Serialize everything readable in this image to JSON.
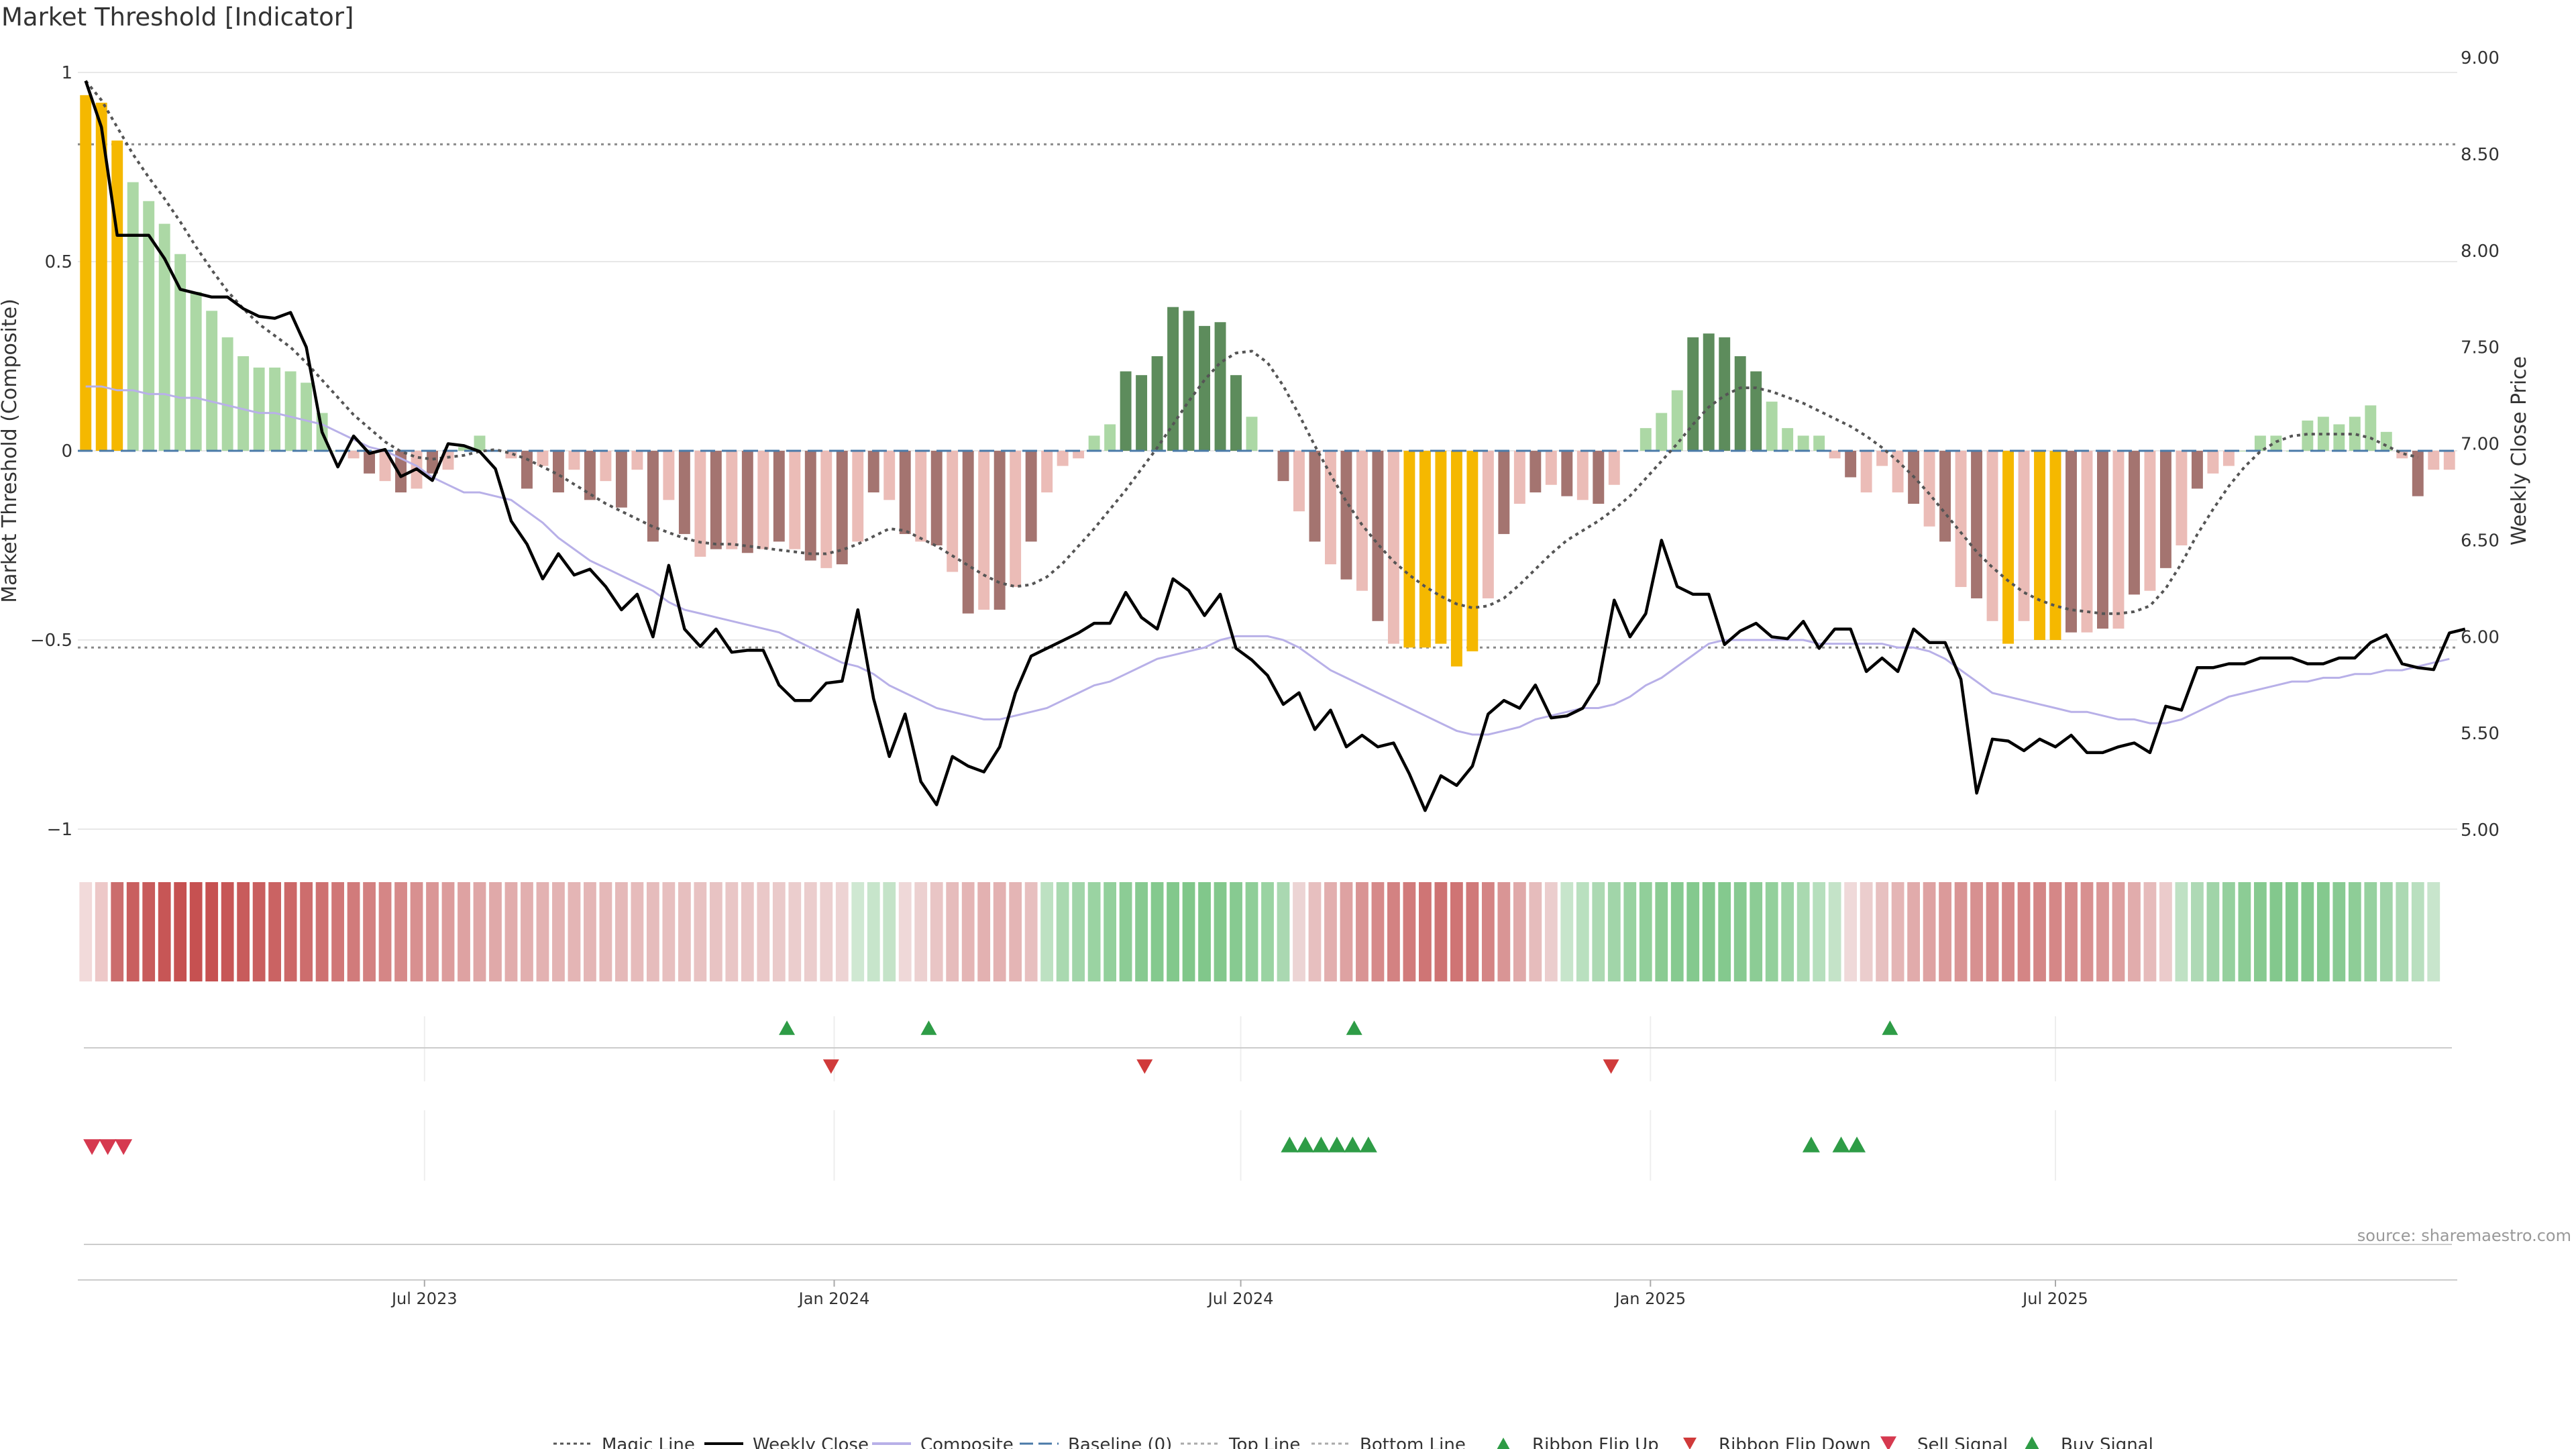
{
  "title": "Market Threshold [Indicator]",
  "source": "source: sharemaestro.com",
  "chart_data": {
    "type": "bar",
    "left_axis": {
      "label": "Market Threshold (Composite)",
      "ticks": [
        "1",
        "0.5",
        "0",
        "−0.5",
        "−1"
      ],
      "range": [
        -1,
        1
      ]
    },
    "right_axis": {
      "label": "Weekly Close Price",
      "ticks": [
        "9.00",
        "8.50",
        "8.00",
        "7.50",
        "7.00",
        "6.50",
        "6.00",
        "5.50",
        "5.00"
      ],
      "range": [
        5.0,
        9.0
      ]
    },
    "x_ticks": [
      {
        "label": "Jul 2023",
        "week": 21.5
      },
      {
        "label": "Jan 2024",
        "week": 47.5
      },
      {
        "label": "Jul 2024",
        "week": 73.3
      },
      {
        "label": "Jan 2025",
        "week": 99.3
      },
      {
        "label": "Jul 2025",
        "week": 125
      }
    ],
    "top_line": 0.81,
    "bottom_line": -0.52,
    "baseline": 0,
    "composite_values": [
      0.94,
      0.92,
      0.82,
      0.71,
      0.66,
      0.6,
      0.52,
      0.42,
      0.37,
      0.3,
      0.25,
      0.22,
      0.22,
      0.21,
      0.18,
      0.1,
      0.0,
      -0.02,
      -0.06,
      -0.08,
      -0.11,
      -0.1,
      -0.06,
      -0.05,
      0.01,
      0.04,
      0.0,
      -0.02,
      -0.1,
      -0.04,
      -0.11,
      -0.05,
      -0.13,
      -0.08,
      -0.15,
      -0.05,
      -0.24,
      -0.13,
      -0.22,
      -0.28,
      -0.26,
      -0.26,
      -0.27,
      -0.26,
      -0.24,
      -0.26,
      -0.29,
      -0.31,
      -0.3,
      -0.24,
      -0.11,
      -0.13,
      -0.22,
      -0.24,
      -0.25,
      -0.32,
      -0.43,
      -0.42,
      -0.42,
      -0.36,
      -0.24,
      -0.11,
      -0.04,
      -0.02,
      0.04,
      0.07,
      0.21,
      0.2,
      0.25,
      0.38,
      0.37,
      0.33,
      0.34,
      0.2,
      0.09,
      0.0,
      -0.08,
      -0.16,
      -0.24,
      -0.3,
      -0.34,
      -0.37,
      -0.45,
      -0.51,
      -0.52,
      -0.52,
      -0.51,
      -0.57,
      -0.53,
      -0.39,
      -0.22,
      -0.14,
      -0.11,
      -0.09,
      -0.12,
      -0.13,
      -0.14,
      -0.09,
      0.0,
      0.06,
      0.1,
      0.16,
      0.3,
      0.31,
      0.3,
      0.25,
      0.21,
      0.13,
      0.06,
      0.04,
      0.04,
      -0.02,
      -0.07,
      -0.11,
      -0.04,
      -0.11,
      -0.14,
      -0.2,
      -0.24,
      -0.36,
      -0.39,
      -0.45,
      -0.51,
      -0.45,
      -0.5,
      -0.5,
      -0.48,
      -0.48,
      -0.47,
      -0.47,
      -0.38,
      -0.37,
      -0.31,
      -0.25,
      -0.1,
      -0.06,
      -0.04,
      0.0,
      0.04,
      0.04,
      0.0,
      0.08,
      0.09,
      0.07,
      0.09,
      0.12,
      0.05,
      -0.02,
      -0.12,
      -0.05,
      -0.05
    ],
    "weekly_close": [
      8.88,
      8.64,
      8.08,
      8.08,
      8.08,
      7.96,
      7.8,
      7.78,
      7.76,
      7.76,
      7.7,
      7.66,
      7.65,
      7.68,
      7.5,
      7.06,
      6.88,
      7.04,
      6.95,
      6.97,
      6.83,
      6.87,
      6.81,
      7.0,
      6.99,
      6.96,
      6.87,
      6.6,
      6.48,
      6.3,
      6.43,
      6.32,
      6.35,
      6.26,
      6.14,
      6.22,
      6.0,
      6.37,
      6.04,
      5.95,
      6.04,
      5.92,
      5.93,
      5.93,
      5.75,
      5.67,
      5.67,
      5.76,
      5.77,
      6.14,
      5.68,
      5.38,
      5.6,
      5.25,
      5.13,
      5.38,
      5.33,
      5.3,
      5.43,
      5.71,
      5.9,
      5.94,
      5.98,
      6.02,
      6.07,
      6.07,
      6.23,
      6.1,
      6.04,
      6.3,
      6.24,
      6.11,
      6.22,
      5.94,
      5.88,
      5.8,
      5.65,
      5.71,
      5.52,
      5.62,
      5.43,
      5.49,
      5.43,
      5.45,
      5.29,
      5.1,
      5.28,
      5.23,
      5.33,
      5.6,
      5.67,
      5.63,
      5.75,
      5.58,
      5.59,
      5.63,
      5.76,
      6.19,
      6.0,
      6.12,
      6.5,
      6.26,
      6.22,
      6.22,
      5.96,
      6.03,
      6.07,
      6.0,
      5.99,
      6.08,
      5.94,
      6.04,
      6.04,
      5.82,
      5.89,
      5.82,
      6.04,
      5.97,
      5.97,
      5.78,
      5.19,
      5.47,
      5.46,
      5.41,
      5.47,
      5.43,
      5.49,
      5.4,
      5.4,
      5.43,
      5.45,
      5.4,
      5.64,
      5.62,
      5.84,
      5.84,
      5.86,
      5.86,
      5.89,
      5.89,
      5.89,
      5.86,
      5.86,
      5.89,
      5.89,
      5.97,
      6.01,
      5.86,
      5.84,
      5.83,
      6.02,
      6.04
    ],
    "magic_line": [
      8.88,
      8.78,
      8.64,
      8.5,
      8.38,
      8.27,
      8.15,
      8.02,
      7.9,
      7.79,
      7.7,
      7.62,
      7.56,
      7.5,
      7.42,
      7.33,
      7.24,
      7.15,
      7.08,
      7.01,
      6.96,
      6.93,
      6.92,
      6.93,
      6.94,
      6.96,
      6.97,
      6.95,
      6.92,
      6.88,
      6.84,
      6.79,
      6.74,
      6.69,
      6.65,
      6.61,
      6.57,
      6.54,
      6.51,
      6.49,
      6.48,
      6.48,
      6.47,
      6.46,
      6.45,
      6.44,
      6.43,
      6.43,
      6.45,
      6.48,
      6.52,
      6.56,
      6.55,
      6.51,
      6.47,
      6.42,
      6.37,
      6.32,
      6.28,
      6.26,
      6.27,
      6.31,
      6.38,
      6.47,
      6.56,
      6.66,
      6.76,
      6.87,
      6.98,
      7.1,
      7.22,
      7.33,
      7.42,
      7.47,
      7.48,
      7.42,
      7.3,
      7.15,
      6.99,
      6.84,
      6.7,
      6.58,
      6.48,
      6.39,
      6.32,
      6.26,
      6.21,
      6.17,
      6.15,
      6.16,
      6.2,
      6.27,
      6.35,
      6.43,
      6.5,
      6.55,
      6.6,
      6.66,
      6.73,
      6.82,
      6.91,
      7.0,
      7.1,
      7.19,
      7.25,
      7.29,
      7.29,
      7.27,
      7.24,
      7.21,
      7.17,
      7.13,
      7.09,
      7.04,
      6.98,
      6.91,
      6.83,
      6.74,
      6.64,
      6.54,
      6.44,
      6.36,
      6.29,
      6.23,
      6.19,
      6.16,
      6.14,
      6.13,
      6.12,
      6.12,
      6.13,
      6.16,
      6.25,
      6.38,
      6.53,
      6.66,
      6.78,
      6.88,
      6.96,
      7.01,
      7.04,
      7.05,
      7.05,
      7.05,
      7.05,
      7.03,
      6.99,
      6.95,
      6.93
    ],
    "composite_line": [
      0.17,
      0.17,
      0.16,
      0.16,
      0.15,
      0.15,
      0.14,
      0.14,
      0.13,
      0.12,
      0.11,
      0.1,
      0.1,
      0.09,
      0.08,
      0.07,
      0.05,
      0.03,
      0.01,
      0.0,
      -0.02,
      -0.04,
      -0.07,
      -0.09,
      -0.11,
      -0.11,
      -0.12,
      -0.13,
      -0.16,
      -0.19,
      -0.23,
      -0.26,
      -0.29,
      -0.31,
      -0.33,
      -0.35,
      -0.37,
      -0.4,
      -0.42,
      -0.43,
      -0.44,
      -0.45,
      -0.46,
      -0.47,
      -0.48,
      -0.5,
      -0.52,
      -0.54,
      -0.56,
      -0.57,
      -0.59,
      -0.62,
      -0.64,
      -0.66,
      -0.68,
      -0.69,
      -0.7,
      -0.71,
      -0.71,
      -0.7,
      -0.69,
      -0.68,
      -0.66,
      -0.64,
      -0.62,
      -0.61,
      -0.59,
      -0.57,
      -0.55,
      -0.54,
      -0.53,
      -0.52,
      -0.5,
      -0.49,
      -0.49,
      -0.49,
      -0.5,
      -0.52,
      -0.55,
      -0.58,
      -0.6,
      -0.62,
      -0.64,
      -0.66,
      -0.68,
      -0.7,
      -0.72,
      -0.74,
      -0.75,
      -0.75,
      -0.74,
      -0.73,
      -0.71,
      -0.7,
      -0.69,
      -0.68,
      -0.68,
      -0.67,
      -0.65,
      -0.62,
      -0.6,
      -0.57,
      -0.54,
      -0.51,
      -0.5,
      -0.5,
      -0.5,
      -0.5,
      -0.5,
      -0.5,
      -0.51,
      -0.51,
      -0.51,
      -0.51,
      -0.51,
      -0.52,
      -0.52,
      -0.53,
      -0.55,
      -0.58,
      -0.61,
      -0.64,
      -0.65,
      -0.66,
      -0.67,
      -0.68,
      -0.69,
      -0.69,
      -0.7,
      -0.71,
      -0.71,
      -0.72,
      -0.72,
      -0.71,
      -0.69,
      -0.67,
      -0.65,
      -0.64,
      -0.63,
      -0.62,
      -0.61,
      -0.61,
      -0.6,
      -0.6,
      -0.59,
      -0.59,
      -0.58,
      -0.58,
      -0.57,
      -0.56,
      -0.55
    ],
    "highlighted_weeks_gold": [
      0,
      1,
      2,
      84,
      85,
      86,
      87,
      88,
      122,
      124,
      125
    ],
    "ribbon_colors": [
      "#f2dada",
      "#edc8c8",
      "#cb6d6d",
      "#c95f5f",
      "#c85b5b",
      "#c75656",
      "#c65151",
      "#c65151",
      "#c65151",
      "#c75656",
      "#c85b5b",
      "#c95f5f",
      "#ca6363",
      "#cc6868",
      "#cd6d6d",
      "#ce7171",
      "#d07777",
      "#d17b7b",
      "#d38181",
      "#d58686",
      "#d68a8a",
      "#d89090",
      "#da9696",
      "#dc9c9c",
      "#dea2a2",
      "#dfa6a6",
      "#e0a9a9",
      "#e1acac",
      "#e2afaf",
      "#e3b2b2",
      "#e3b3b3",
      "#e4b5b5",
      "#e4b6b6",
      "#e5b8b8",
      "#e5b9b9",
      "#e6bbbb",
      "#e6bcbc",
      "#e7bfbf",
      "#e7bfbf",
      "#e8c2c2",
      "#e8c3c3",
      "#e9c6c6",
      "#e9c6c6",
      "#eac8c8",
      "#eacaca",
      "#ebcdcd",
      "#ebcdcd",
      "#eccfcf",
      "#edd3d3",
      "#cfe8d2",
      "#c7e5cb",
      "#c4e3c8",
      "#efd8d8",
      "#ecd0d0",
      "#e9c5c5",
      "#e6bcbc",
      "#e4b5b5",
      "#e3b1b1",
      "#e3b1b1",
      "#e4b5b5",
      "#e7bfbf",
      "#bde1c2",
      "#a9d9b0",
      "#a1d5a9",
      "#9ad3a2",
      "#93d09c",
      "#8ccc95",
      "#87ca91",
      "#84c98e",
      "#82c88c",
      "#80c78a",
      "#81c78b",
      "#83c88d",
      "#87ca91",
      "#8fce98",
      "#9ad3a2",
      "#aad8b1",
      "#ecd4d4",
      "#e7bfbf",
      "#e2aeae",
      "#dea2a2",
      "#d99494",
      "#d68a8a",
      "#d38282",
      "#d17b7b",
      "#cf7575",
      "#ce7373",
      "#cf7474",
      "#d07979",
      "#d48484",
      "#d99595",
      "#e0a9a9",
      "#e6bcbc",
      "#ebcdcd",
      "#c7e5cb",
      "#b9e0bf",
      "#acd9b3",
      "#a1d5a9",
      "#98d2a0",
      "#91cf9a",
      "#8acb93",
      "#86ca90",
      "#84c98e",
      "#83c88d",
      "#84c98e",
      "#87ca91",
      "#8ccc95",
      "#93d09c",
      "#9dd4a5",
      "#a9d9b0",
      "#b6dfbd",
      "#c4e3c8",
      "#efd9d9",
      "#ebcdcd",
      "#e7c0c0",
      "#e4b5b5",
      "#e1abab",
      "#dea2a2",
      "#db9a9a",
      "#d99494",
      "#d79090",
      "#d68b8b",
      "#d58888",
      "#d48585",
      "#d48585",
      "#d58787",
      "#d68a8a",
      "#d89090",
      "#da9797",
      "#dd9f9f",
      "#e1acac",
      "#e6bbbb",
      "#ebcbcb",
      "#bfe1c4",
      "#aed9b5",
      "#a0d4a8",
      "#95d09e",
      "#8ccc95",
      "#86ca90",
      "#83c88d",
      "#82c88c",
      "#82c88c",
      "#84c98e",
      "#88ca92",
      "#8ecd97",
      "#96d19f",
      "#a0d4a8",
      "#acd9b3",
      "#b9dfbf",
      "#c8e5cc"
    ],
    "ribbon_flip_up_weeks": [
      44.5,
      53.5,
      80.5,
      114.5
    ],
    "ribbon_flip_down_weeks": [
      47.3,
      67.2,
      96.8
    ],
    "sell_signal_weeks": [
      0.4,
      1.4,
      2.4
    ],
    "buy_signal_weeks": [
      76.4,
      77.4,
      78.4,
      79.4,
      80.4,
      81.4,
      109.5,
      111.4,
      112.4
    ],
    "legend": [
      {
        "label": "Magic Line",
        "kind": "dotted",
        "color": "#555555"
      },
      {
        "label": "Weekly Close",
        "kind": "solid",
        "color": "#000000"
      },
      {
        "label": "Composite",
        "kind": "solid",
        "color": "#b8b0e8"
      },
      {
        "label": "Baseline (0)",
        "kind": "dashed",
        "color": "#4a7aa8"
      },
      {
        "label": "Top Line",
        "kind": "dotted",
        "color": "#aaaaaa"
      },
      {
        "label": "Bottom Line",
        "kind": "dotted",
        "color": "#aaaaaa"
      },
      {
        "label": "Ribbon Flip Up",
        "kind": "tri-up-small",
        "color": "#2e9c46"
      },
      {
        "label": "Ribbon Flip Down",
        "kind": "tri-down-small",
        "color": "#d03a3a"
      },
      {
        "label": "Sell Signal",
        "kind": "tri-down",
        "color": "#d6394f"
      },
      {
        "label": "Buy Signal",
        "kind": "tri-up",
        "color": "#2e9c46"
      }
    ],
    "colors": {
      "gold": "#f5b800",
      "pos_light": "#acd8a5",
      "pos_dark": "#5d8c5c",
      "neg_light": "#ebbcb7",
      "neg_dark": "#a47470",
      "magic": "#555555",
      "close": "#000000",
      "composite": "#b8b0e8",
      "baseline": "#4a7aa8",
      "grid": "#e8e8e8"
    }
  }
}
